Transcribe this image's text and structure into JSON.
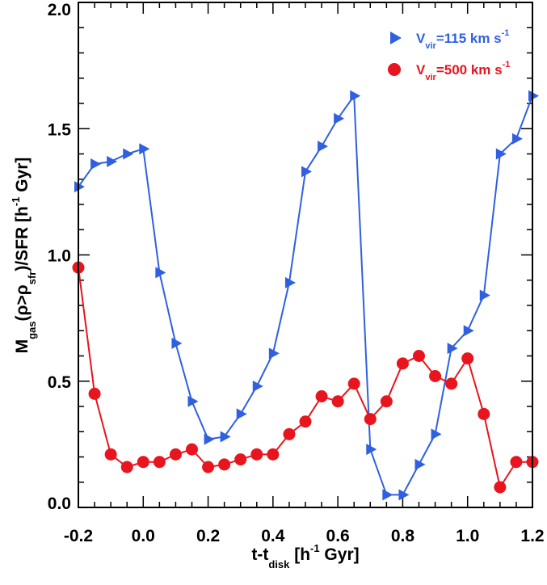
{
  "chart_data": {
    "type": "line",
    "title": "",
    "xlabel": {
      "main": "t-t",
      "sub": "disk",
      "rest_before_sup": " [h",
      "sup": "-1",
      "rest_after_sup": " Gyr]"
    },
    "ylabel": {
      "part1": "M",
      "sub1": "gas",
      "part2": "(ρ>ρ",
      "sub2": "sfr",
      "part3": ")/SFR [h",
      "sup": "-1",
      "part4": " Gyr]"
    },
    "xlim": [
      -0.2,
      1.2
    ],
    "ylim": [
      0.0,
      2.0
    ],
    "xticks": [
      -0.2,
      0.0,
      0.2,
      0.4,
      0.6,
      0.8,
      1.0,
      1.2
    ],
    "xtick_labels": [
      "-0.2",
      "0.0",
      "0.2",
      "0.4",
      "0.6",
      "0.8",
      "1.0",
      "1.2"
    ],
    "yticks": [
      0.0,
      0.5,
      1.0,
      1.5,
      2.0
    ],
    "ytick_labels": [
      "0.0",
      "0.5",
      "1.0",
      "1.5",
      "2.0"
    ],
    "legend_position": "top-right",
    "series": [
      {
        "name": "V_vir=115 km s^-1",
        "legend": {
          "main": "V",
          "sub": "vir",
          "rest": "=115 km s",
          "sup": "-1"
        },
        "color": "#3060e0",
        "marker": "triangle-right",
        "x": [
          -0.2,
          -0.15,
          -0.1,
          -0.05,
          0.0,
          0.05,
          0.1,
          0.15,
          0.2,
          0.25,
          0.3,
          0.35,
          0.4,
          0.45,
          0.5,
          0.55,
          0.6,
          0.65,
          0.7,
          0.75,
          0.8,
          0.85,
          0.9,
          0.95,
          1.0,
          1.05,
          1.1,
          1.15,
          1.2
        ],
        "y": [
          1.27,
          1.36,
          1.37,
          1.4,
          1.42,
          0.93,
          0.65,
          0.42,
          0.27,
          0.28,
          0.37,
          0.48,
          0.61,
          0.89,
          1.33,
          1.43,
          1.54,
          1.63,
          0.23,
          0.05,
          0.05,
          0.17,
          0.29,
          0.63,
          0.7,
          0.84,
          1.4,
          1.46,
          1.63
        ]
      },
      {
        "name": "V_vir=500 km s^-1",
        "legend": {
          "main": "V",
          "sub": "vir",
          "rest": "=500 km s",
          "sup": "-1"
        },
        "color": "#e8141e",
        "marker": "circle",
        "x": [
          -0.2,
          -0.15,
          -0.1,
          -0.05,
          0.0,
          0.05,
          0.1,
          0.15,
          0.2,
          0.25,
          0.3,
          0.35,
          0.4,
          0.45,
          0.5,
          0.55,
          0.6,
          0.65,
          0.7,
          0.75,
          0.8,
          0.85,
          0.9,
          0.95,
          1.0,
          1.05,
          1.1,
          1.15,
          1.2
        ],
        "y": [
          0.95,
          0.45,
          0.21,
          0.16,
          0.18,
          0.18,
          0.21,
          0.23,
          0.16,
          0.17,
          0.19,
          0.21,
          0.21,
          0.29,
          0.34,
          0.44,
          0.42,
          0.49,
          0.35,
          0.42,
          0.57,
          0.6,
          0.52,
          0.49,
          0.59,
          0.37,
          0.08,
          0.18,
          0.18
        ]
      }
    ]
  }
}
